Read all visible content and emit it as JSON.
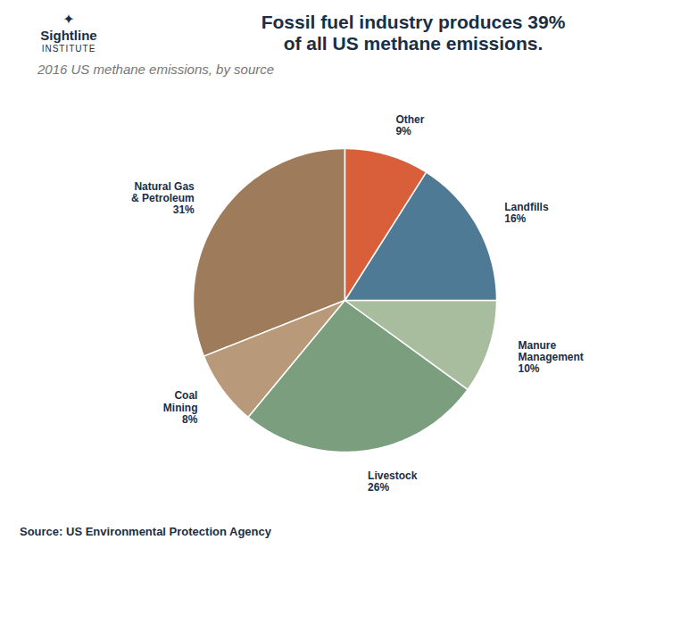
{
  "chart_data": {
    "type": "pie",
    "title": "Fossil fuel industry produces 39%\nof all US methane emissions.",
    "subtitle": "2016 US methane emissions, by source",
    "annotations": [
      "✦",
      "Sightline",
      "INSTITUTE",
      "Source: US Environmental Protection Agency"
    ],
    "categories": [
      "Natural Gas\n& Petroleum",
      "Coal\nMining",
      "Livestock",
      "Manure\nManagement",
      "Landfills",
      "Other"
    ],
    "values": [
      31,
      8,
      26,
      10,
      16,
      9
    ],
    "value_labels": [
      "31%",
      "8%",
      "26%",
      "10%",
      "16%",
      "9%"
    ],
    "colors": [
      "#9e7b5a",
      "#b89a7a",
      "#7a9e7e",
      "#a8bc9e",
      "#4e7a96",
      "#d95f3b"
    ],
    "data_labels": true
  }
}
